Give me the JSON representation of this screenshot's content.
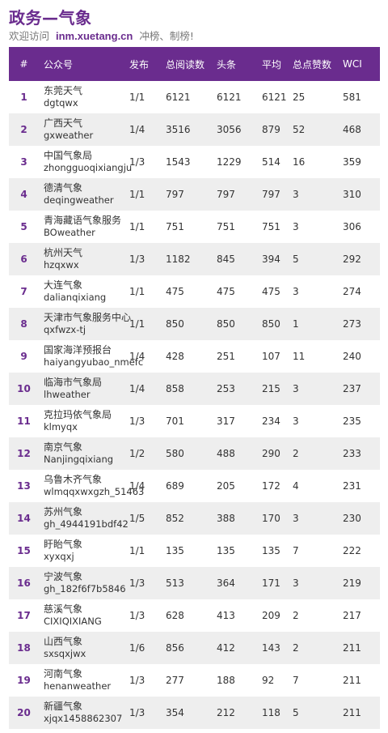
{
  "header": {
    "title": "政务—气象",
    "subtitle_prefix": "欢迎访问",
    "site": "inm.xuetang.cn",
    "subtitle_suffix": "冲榜、制榜!"
  },
  "colors": {
    "accent": "#6a2c8e",
    "row_alt": "#eeeeee"
  },
  "table": {
    "columns": [
      "#",
      "公众号",
      "发布",
      "总阅读数",
      "头条",
      "平均",
      "总点赞数",
      "WCI"
    ],
    "rows": [
      {
        "rank": "1",
        "name": "东莞天气",
        "id": "dgtqwx",
        "publish": "1/1",
        "total_reads": "6121",
        "headline": "6121",
        "average": "6121",
        "likes": "25",
        "wci": "581"
      },
      {
        "rank": "2",
        "name": "广西天气",
        "id": "gxweather",
        "publish": "1/4",
        "total_reads": "3516",
        "headline": "3056",
        "average": "879",
        "likes": "52",
        "wci": "468"
      },
      {
        "rank": "3",
        "name": "中国气象局",
        "id": "zhongguoqixiangju",
        "publish": "1/3",
        "total_reads": "1543",
        "headline": "1229",
        "average": "514",
        "likes": "16",
        "wci": "359"
      },
      {
        "rank": "4",
        "name": "德清气象",
        "id": "deqingweather",
        "publish": "1/1",
        "total_reads": "797",
        "headline": "797",
        "average": "797",
        "likes": "3",
        "wci": "310"
      },
      {
        "rank": "5",
        "name": "青海藏语气象服务",
        "id": "BOweather",
        "publish": "1/1",
        "total_reads": "751",
        "headline": "751",
        "average": "751",
        "likes": "3",
        "wci": "306"
      },
      {
        "rank": "6",
        "name": "杭州天气",
        "id": "hzqxwx",
        "publish": "1/3",
        "total_reads": "1182",
        "headline": "845",
        "average": "394",
        "likes": "5",
        "wci": "292"
      },
      {
        "rank": "7",
        "name": "大连气象",
        "id": "dalianqixiang",
        "publish": "1/1",
        "total_reads": "475",
        "headline": "475",
        "average": "475",
        "likes": "3",
        "wci": "274"
      },
      {
        "rank": "8",
        "name": "天津市气象服务中心",
        "id": "qxfwzx-tj",
        "publish": "1/1",
        "total_reads": "850",
        "headline": "850",
        "average": "850",
        "likes": "1",
        "wci": "273"
      },
      {
        "rank": "9",
        "name": "国家海洋预报台",
        "id": "haiyangyubao_nmefc",
        "publish": "1/4",
        "total_reads": "428",
        "headline": "251",
        "average": "107",
        "likes": "11",
        "wci": "240"
      },
      {
        "rank": "10",
        "name": "临海市气象局",
        "id": "lhweather",
        "publish": "1/4",
        "total_reads": "858",
        "headline": "253",
        "average": "215",
        "likes": "3",
        "wci": "237"
      },
      {
        "rank": "11",
        "name": "克拉玛依气象局",
        "id": "klmyqx",
        "publish": "1/3",
        "total_reads": "701",
        "headline": "317",
        "average": "234",
        "likes": "3",
        "wci": "235"
      },
      {
        "rank": "12",
        "name": "南京气象",
        "id": "Nanjingqixiang",
        "publish": "1/2",
        "total_reads": "580",
        "headline": "488",
        "average": "290",
        "likes": "2",
        "wci": "233"
      },
      {
        "rank": "13",
        "name": "乌鲁木齐气象",
        "id": "wlmqqxwxgzh_51463",
        "publish": "1/4",
        "total_reads": "689",
        "headline": "205",
        "average": "172",
        "likes": "4",
        "wci": "231"
      },
      {
        "rank": "14",
        "name": "苏州气象",
        "id": "gh_4944191bdf42",
        "publish": "1/5",
        "total_reads": "852",
        "headline": "388",
        "average": "170",
        "likes": "3",
        "wci": "230"
      },
      {
        "rank": "15",
        "name": "盱眙气象",
        "id": "xyxqxj",
        "publish": "1/1",
        "total_reads": "135",
        "headline": "135",
        "average": "135",
        "likes": "7",
        "wci": "222"
      },
      {
        "rank": "16",
        "name": "宁波气象",
        "id": "gh_182f6f7b5846",
        "publish": "1/3",
        "total_reads": "513",
        "headline": "364",
        "average": "171",
        "likes": "3",
        "wci": "219"
      },
      {
        "rank": "17",
        "name": "慈溪气象",
        "id": "CIXIQIXIANG",
        "publish": "1/3",
        "total_reads": "628",
        "headline": "413",
        "average": "209",
        "likes": "2",
        "wci": "217"
      },
      {
        "rank": "18",
        "name": "山西气象",
        "id": "sxsqxjwx",
        "publish": "1/6",
        "total_reads": "856",
        "headline": "412",
        "average": "143",
        "likes": "2",
        "wci": "211"
      },
      {
        "rank": "19",
        "name": "河南气象",
        "id": "henanweather",
        "publish": "1/3",
        "total_reads": "277",
        "headline": "188",
        "average": "92",
        "likes": "7",
        "wci": "211"
      },
      {
        "rank": "20",
        "name": "新疆气象",
        "id": "xjqx1458862307",
        "publish": "1/3",
        "total_reads": "354",
        "headline": "212",
        "average": "118",
        "likes": "5",
        "wci": "211"
      }
    ]
  }
}
